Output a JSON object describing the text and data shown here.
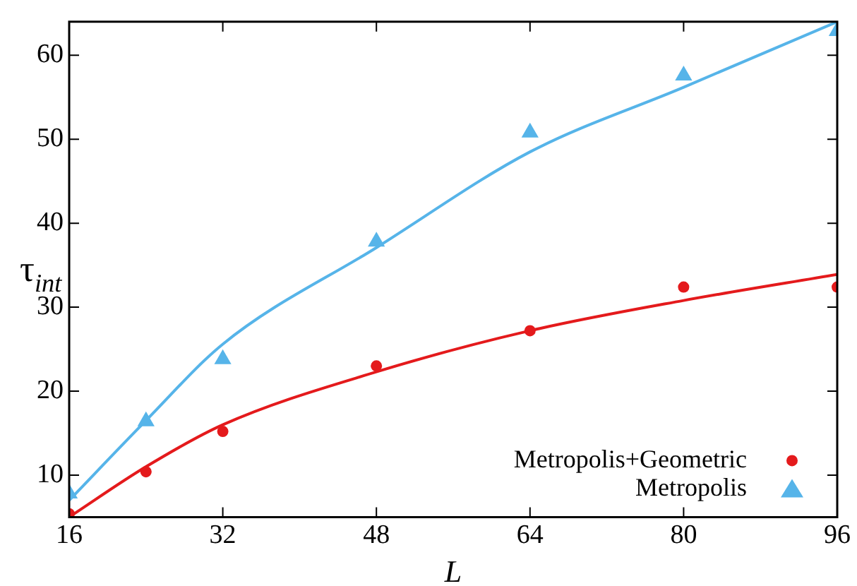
{
  "chart_data": {
    "type": "scatter",
    "xlabel": "L",
    "ylabel": "τ$_{int}$",
    "xlim": [
      16,
      96
    ],
    "xticks": [
      16,
      32,
      48,
      64,
      80,
      96
    ],
    "ylim": [
      5,
      64
    ],
    "yticks": [
      10,
      20,
      30,
      40,
      50,
      60
    ],
    "grid": false,
    "legend": "bottom right",
    "x": [
      16,
      24,
      32,
      48,
      64,
      80,
      96
    ],
    "series": [
      {
        "name": "Metropolis+Geometric",
        "color": "#e41a1c",
        "marker": "circle",
        "values": [
          5.4,
          10.4,
          15.2,
          23.0,
          27.2,
          32.4,
          32.4
        ]
      },
      {
        "name": "Metropolis",
        "color": "#56b4e9",
        "marker": "triangle",
        "values": [
          7.8,
          16.4,
          23.8,
          37.8,
          50.8,
          57.6,
          62.9
        ]
      },
      {
        "type": "line",
        "color": "#e41a1c",
        "marker": "none",
        "line_style": "solid",
        "x": [
          16,
          24,
          32,
          48,
          64,
          80,
          96
        ],
        "values": [
          5.0,
          11.0,
          16.0,
          22.3,
          27.2,
          30.8,
          33.9
        ]
      },
      {
        "type": "line",
        "color": "#56b4e9",
        "marker": "none",
        "line_style": "solid",
        "x": [
          16,
          24,
          32,
          48,
          64,
          80,
          96
        ],
        "values": [
          7.0,
          16.5,
          25.6,
          37.1,
          48.5,
          56.2,
          64
        ]
      }
    ]
  }
}
